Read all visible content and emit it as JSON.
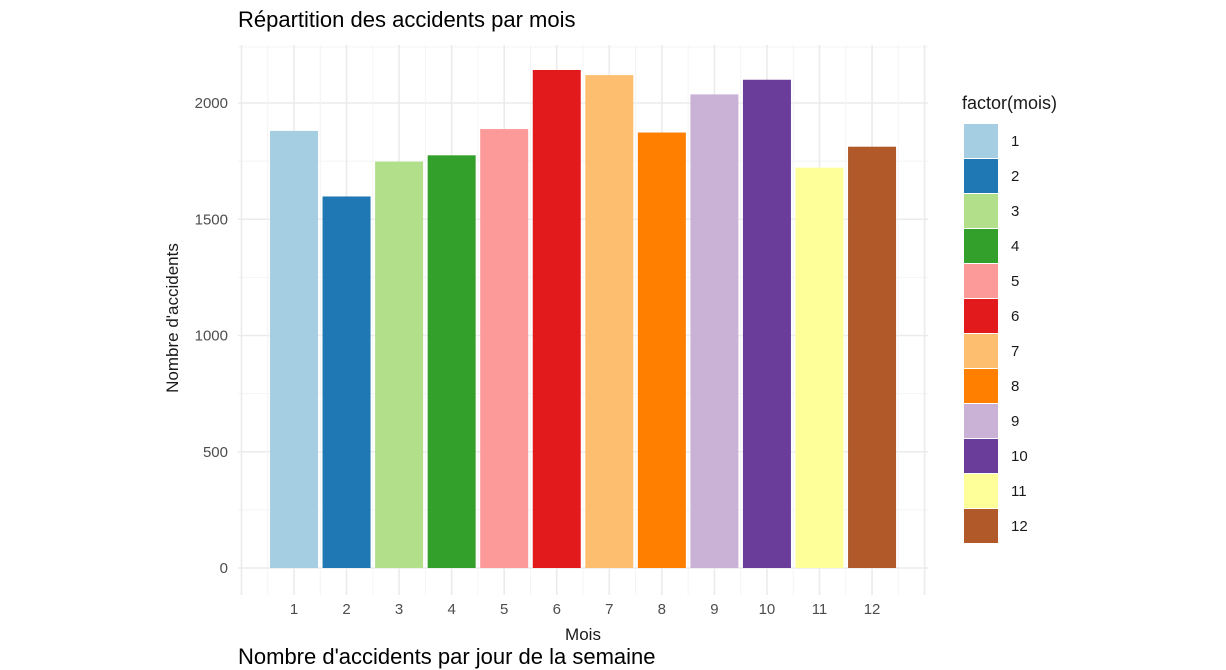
{
  "chart_data": {
    "type": "bar",
    "title": "Répartition des accidents par mois",
    "xlabel": "Mois",
    "ylabel": "Nombre d'accidents",
    "categories": [
      "1",
      "2",
      "3",
      "4",
      "5",
      "6",
      "7",
      "8",
      "9",
      "10",
      "11",
      "12"
    ],
    "values": [
      1880,
      1598,
      1748,
      1775,
      1888,
      2142,
      2120,
      1873,
      2037,
      2100,
      1722,
      1812
    ],
    "ylim": [
      0,
      2250
    ],
    "yticks": [
      "0",
      "500",
      "1000",
      "1500",
      "2000"
    ],
    "colors": [
      "#A6CEE3",
      "#1F78B4",
      "#B2DF8A",
      "#33A02C",
      "#FB9A99",
      "#E31A1C",
      "#FDBF6F",
      "#FF7F00",
      "#CAB2D6",
      "#6A3D9A",
      "#FFFF99",
      "#B15928"
    ],
    "legend": {
      "title": "factor(mois)",
      "placement": "right",
      "entries": [
        "1",
        "2",
        "3",
        "4",
        "5",
        "6",
        "7",
        "8",
        "9",
        "10",
        "11",
        "12"
      ]
    },
    "grid": true
  },
  "next_title": "Nombre d'accidents par jour de la semaine"
}
